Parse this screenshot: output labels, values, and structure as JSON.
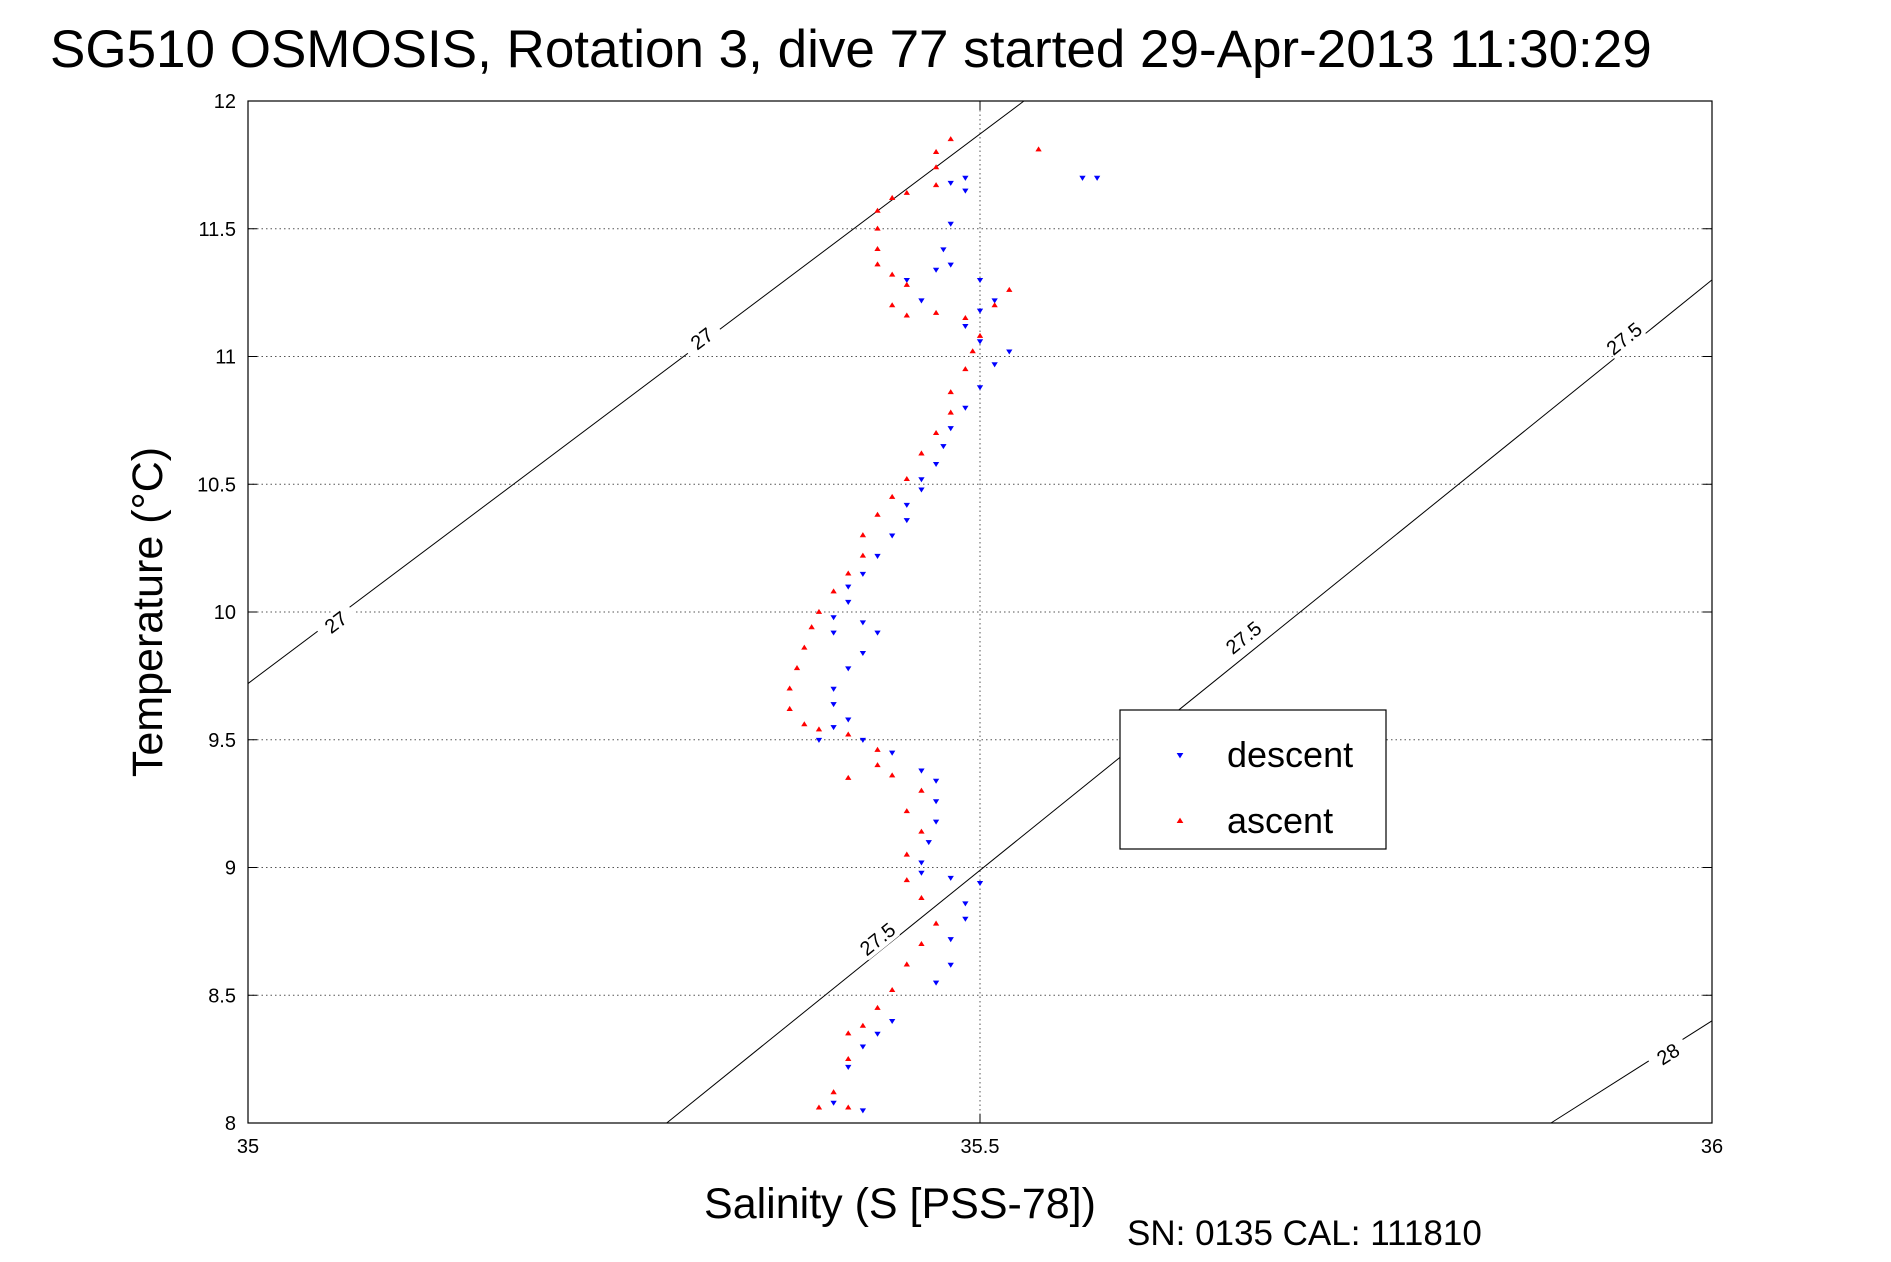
{
  "chart_data": {
    "type": "scatter",
    "title": "SG510 OSMOSIS, Rotation 3, dive 77 started 29-Apr-2013 11:30:29",
    "xlabel": "Salinity (S [PSS-78])",
    "ylabel": "Temperature (°C)",
    "xlim": [
      35,
      36
    ],
    "ylim": [
      8,
      12
    ],
    "xticks": [
      35,
      35.5,
      36
    ],
    "xtick_labels": [
      "35",
      "35.5",
      "36"
    ],
    "yticks": [
      8,
      8.5,
      9,
      9.5,
      10,
      10.5,
      11,
      11.5,
      12
    ],
    "ytick_labels": [
      "8",
      "8.5",
      "9",
      "9.5",
      "10",
      "10.5",
      "11",
      "11.5",
      "12"
    ],
    "grid": true,
    "legend_position": "center-right",
    "footer": "SN: 0135  CAL: 111810",
    "density_contours": [
      {
        "label": "27",
        "points": [
          [
            35,
            9.72
          ],
          [
            35.53,
            12
          ]
        ],
        "label_positions": [
          [
            35.06,
            9.96
          ],
          [
            35.31,
            11.07
          ]
        ]
      },
      {
        "label": "27.5",
        "points": [
          [
            35.286,
            8
          ],
          [
            36,
            11.3
          ]
        ],
        "label_positions": [
          [
            35.43,
            8.72
          ],
          [
            35.68,
            9.9
          ],
          [
            35.94,
            11.07
          ]
        ]
      },
      {
        "label": "28",
        "points": [
          [
            35.89,
            8
          ],
          [
            36,
            8.4
          ]
        ],
        "label_positions": [
          [
            35.97,
            8.27
          ]
        ]
      }
    ],
    "series": [
      {
        "name": "descent",
        "color": "#0000ff",
        "marker": "triangle-down",
        "points": [
          [
            35.58,
            11.7
          ],
          [
            35.57,
            11.7
          ],
          [
            35.49,
            11.7
          ],
          [
            35.48,
            11.68
          ],
          [
            35.49,
            11.65
          ],
          [
            35.48,
            11.52
          ],
          [
            35.475,
            11.42
          ],
          [
            35.48,
            11.36
          ],
          [
            35.47,
            11.34
          ],
          [
            35.45,
            11.3
          ],
          [
            35.5,
            11.3
          ],
          [
            35.46,
            11.22
          ],
          [
            35.51,
            11.22
          ],
          [
            35.5,
            11.18
          ],
          [
            35.49,
            11.12
          ],
          [
            35.5,
            11.06
          ],
          [
            35.52,
            11.02
          ],
          [
            35.51,
            10.97
          ],
          [
            35.5,
            10.88
          ],
          [
            35.49,
            10.8
          ],
          [
            35.48,
            10.72
          ],
          [
            35.475,
            10.65
          ],
          [
            35.47,
            10.58
          ],
          [
            35.46,
            10.52
          ],
          [
            35.46,
            10.48
          ],
          [
            35.45,
            10.42
          ],
          [
            35.45,
            10.36
          ],
          [
            35.44,
            10.3
          ],
          [
            35.43,
            10.22
          ],
          [
            35.42,
            10.15
          ],
          [
            35.41,
            10.1
          ],
          [
            35.41,
            10.04
          ],
          [
            35.4,
            9.98
          ],
          [
            35.4,
            9.92
          ],
          [
            35.42,
            9.96
          ],
          [
            35.43,
            9.92
          ],
          [
            35.42,
            9.84
          ],
          [
            35.41,
            9.78
          ],
          [
            35.4,
            9.7
          ],
          [
            35.4,
            9.64
          ],
          [
            35.41,
            9.58
          ],
          [
            35.4,
            9.55
          ],
          [
            35.39,
            9.5
          ],
          [
            35.42,
            9.5
          ],
          [
            35.44,
            9.45
          ],
          [
            35.46,
            9.38
          ],
          [
            35.47,
            9.34
          ],
          [
            35.47,
            9.26
          ],
          [
            35.47,
            9.18
          ],
          [
            35.465,
            9.1
          ],
          [
            35.46,
            9.02
          ],
          [
            35.46,
            8.98
          ],
          [
            35.48,
            8.96
          ],
          [
            35.5,
            8.94
          ],
          [
            35.49,
            8.86
          ],
          [
            35.49,
            8.8
          ],
          [
            35.48,
            8.72
          ],
          [
            35.48,
            8.62
          ],
          [
            35.47,
            8.55
          ],
          [
            35.44,
            8.4
          ],
          [
            35.43,
            8.35
          ],
          [
            35.42,
            8.3
          ],
          [
            35.41,
            8.22
          ],
          [
            35.4,
            8.08
          ],
          [
            35.42,
            8.05
          ]
        ]
      },
      {
        "name": "ascent",
        "color": "#ff0000",
        "marker": "triangle-up",
        "points": [
          [
            35.54,
            11.81
          ],
          [
            35.48,
            11.85
          ],
          [
            35.47,
            11.8
          ],
          [
            35.47,
            11.74
          ],
          [
            35.47,
            11.67
          ],
          [
            35.45,
            11.64
          ],
          [
            35.44,
            11.62
          ],
          [
            35.43,
            11.57
          ],
          [
            35.43,
            11.5
          ],
          [
            35.43,
            11.42
          ],
          [
            35.43,
            11.36
          ],
          [
            35.44,
            11.32
          ],
          [
            35.45,
            11.28
          ],
          [
            35.44,
            11.2
          ],
          [
            35.45,
            11.16
          ],
          [
            35.47,
            11.17
          ],
          [
            35.49,
            11.15
          ],
          [
            35.51,
            11.2
          ],
          [
            35.52,
            11.26
          ],
          [
            35.5,
            11.08
          ],
          [
            35.495,
            11.02
          ],
          [
            35.49,
            10.95
          ],
          [
            35.48,
            10.86
          ],
          [
            35.48,
            10.78
          ],
          [
            35.47,
            10.7
          ],
          [
            35.46,
            10.62
          ],
          [
            35.45,
            10.52
          ],
          [
            35.44,
            10.45
          ],
          [
            35.43,
            10.38
          ],
          [
            35.42,
            10.3
          ],
          [
            35.42,
            10.22
          ],
          [
            35.41,
            10.15
          ],
          [
            35.4,
            10.08
          ],
          [
            35.39,
            10.0
          ],
          [
            35.385,
            9.94
          ],
          [
            35.38,
            9.86
          ],
          [
            35.375,
            9.78
          ],
          [
            35.37,
            9.7
          ],
          [
            35.37,
            9.62
          ],
          [
            35.38,
            9.56
          ],
          [
            35.39,
            9.54
          ],
          [
            35.41,
            9.52
          ],
          [
            35.43,
            9.46
          ],
          [
            35.43,
            9.4
          ],
          [
            35.41,
            9.35
          ],
          [
            35.44,
            9.36
          ],
          [
            35.46,
            9.3
          ],
          [
            35.45,
            9.22
          ],
          [
            35.46,
            9.14
          ],
          [
            35.45,
            9.05
          ],
          [
            35.45,
            8.95
          ],
          [
            35.46,
            8.88
          ],
          [
            35.47,
            8.78
          ],
          [
            35.46,
            8.7
          ],
          [
            35.45,
            8.62
          ],
          [
            35.44,
            8.52
          ],
          [
            35.43,
            8.45
          ],
          [
            35.42,
            8.38
          ],
          [
            35.41,
            8.35
          ],
          [
            35.41,
            8.25
          ],
          [
            35.4,
            8.12
          ],
          [
            35.39,
            8.06
          ],
          [
            35.41,
            8.06
          ]
        ]
      }
    ]
  }
}
